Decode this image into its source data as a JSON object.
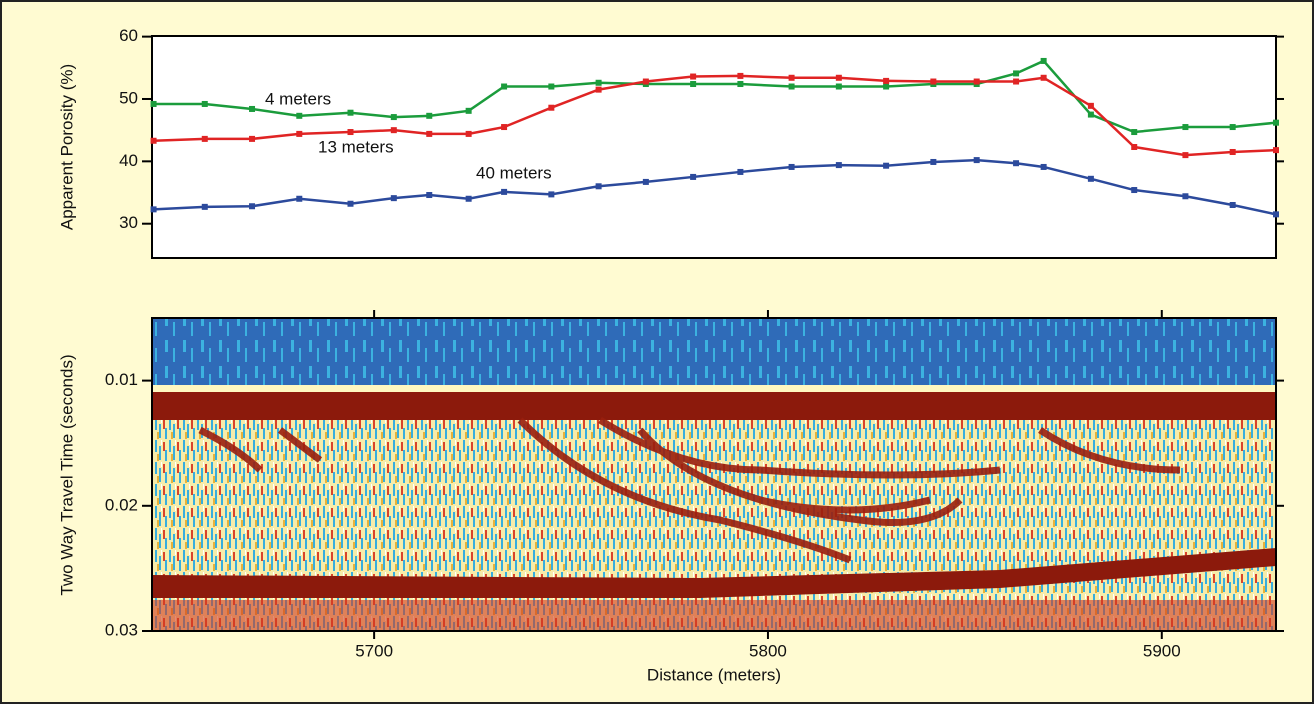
{
  "chart_data": [
    {
      "type": "line",
      "ylabel": "Apparent Porosity (%)",
      "xlim": [
        5643.6,
        5929
      ],
      "ylim": [
        24.5,
        60.1
      ],
      "yticks": [
        30,
        40,
        50,
        60
      ],
      "x": [
        5644,
        5657,
        5669,
        5681,
        5694,
        5705,
        5714,
        5724,
        5733,
        5745,
        5757,
        5769,
        5781,
        5793,
        5806,
        5818,
        5830,
        5842,
        5853,
        5863,
        5870,
        5882,
        5893,
        5906,
        5918,
        5929
      ],
      "series": [
        {
          "name": "4 meters",
          "color": "#1b9c3c",
          "values": [
            49.2,
            49.2,
            48.4,
            47.3,
            47.8,
            47.1,
            47.3,
            48.1,
            52.0,
            52.0,
            52.6,
            52.4,
            52.4,
            52.4,
            52.0,
            52.0,
            52.0,
            52.4,
            52.4,
            54.1,
            56.1,
            47.5,
            44.7,
            45.5,
            45.5,
            46.2
          ]
        },
        {
          "name": "13 meters",
          "color": "#e02424",
          "values": [
            43.3,
            43.6,
            43.6,
            44.4,
            44.7,
            45.0,
            44.4,
            44.4,
            45.5,
            48.6,
            51.5,
            52.8,
            53.6,
            53.7,
            53.4,
            53.4,
            52.9,
            52.8,
            52.8,
            52.8,
            53.4,
            48.9,
            42.3,
            41.0,
            41.5,
            41.8
          ]
        },
        {
          "name": "40 meters",
          "color": "#2c4a9c",
          "values": [
            32.3,
            32.7,
            32.8,
            34.0,
            33.2,
            34.1,
            34.6,
            34.0,
            35.1,
            34.7,
            36.0,
            36.7,
            37.5,
            38.3,
            39.1,
            39.4,
            39.3,
            39.9,
            40.2,
            39.7,
            39.1,
            37.2,
            35.4,
            34.4,
            33.0,
            31.5
          ]
        }
      ]
    },
    {
      "type": "image",
      "ylabel": "Two Way Travel Time (seconds)",
      "xlabel": "Distance (meters)",
      "xlim": [
        5643.6,
        5929
      ],
      "xticks": [
        5700,
        5800,
        5900
      ],
      "ylim": [
        0.005,
        0.03
      ],
      "yticks": [
        0.01,
        0.02,
        0.03
      ],
      "y_inverted": true
    }
  ]
}
